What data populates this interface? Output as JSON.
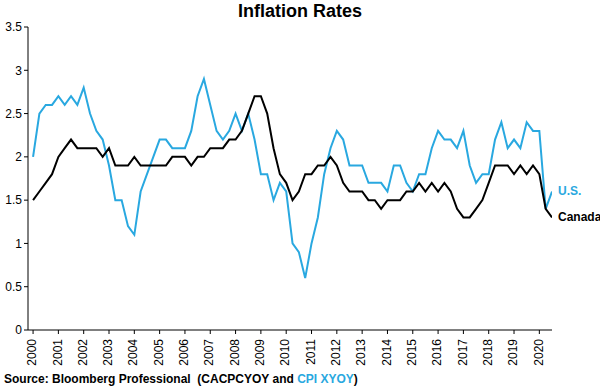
{
  "chart_data": {
    "type": "line",
    "title": "Inflation Rates",
    "source": [
      "Source: Bloomberg Professional  (CACPCYOY and ",
      "CPI XYOY",
      ")"
    ],
    "x": [
      2000,
      2000.25,
      2000.5,
      2000.75,
      2001,
      2001.25,
      2001.5,
      2001.75,
      2002,
      2002.25,
      2002.5,
      2002.75,
      2003,
      2003.25,
      2003.5,
      2003.75,
      2004,
      2004.25,
      2004.5,
      2004.75,
      2005,
      2005.25,
      2005.5,
      2005.75,
      2006,
      2006.25,
      2006.5,
      2006.75,
      2007,
      2007.25,
      2007.5,
      2007.75,
      2008,
      2008.25,
      2008.5,
      2008.75,
      2009,
      2009.25,
      2009.5,
      2009.75,
      2010,
      2010.25,
      2010.5,
      2010.75,
      2011,
      2011.25,
      2011.5,
      2011.75,
      2012,
      2012.25,
      2012.5,
      2012.75,
      2013,
      2013.25,
      2013.5,
      2013.75,
      2014,
      2014.25,
      2014.5,
      2014.75,
      2015,
      2015.25,
      2015.5,
      2015.75,
      2016,
      2016.25,
      2016.5,
      2016.75,
      2017,
      2017.25,
      2017.5,
      2017.75,
      2018,
      2018.25,
      2018.5,
      2018.75,
      2019,
      2019.25,
      2019.5,
      2019.75,
      2020,
      2020.25,
      2020.5
    ],
    "series": [
      {
        "name": "U.S.",
        "color": "#29a8e0",
        "values": [
          2.0,
          2.5,
          2.6,
          2.6,
          2.7,
          2.6,
          2.7,
          2.6,
          2.8,
          2.5,
          2.3,
          2.2,
          1.9,
          1.5,
          1.5,
          1.2,
          1.1,
          1.6,
          1.8,
          2.0,
          2.2,
          2.2,
          2.1,
          2.1,
          2.1,
          2.3,
          2.7,
          2.9,
          2.6,
          2.3,
          2.2,
          2.3,
          2.5,
          2.3,
          2.5,
          2.2,
          1.8,
          1.8,
          1.5,
          1.7,
          1.6,
          1.0,
          0.9,
          0.6,
          1.0,
          1.3,
          1.8,
          2.1,
          2.3,
          2.2,
          1.9,
          1.9,
          1.9,
          1.7,
          1.7,
          1.7,
          1.6,
          1.9,
          1.9,
          1.7,
          1.6,
          1.8,
          1.8,
          2.1,
          2.3,
          2.2,
          2.2,
          2.1,
          2.3,
          1.9,
          1.7,
          1.8,
          1.8,
          2.2,
          2.4,
          2.1,
          2.2,
          2.1,
          2.4,
          2.3,
          2.3,
          1.4,
          1.6
        ]
      },
      {
        "name": "Canada",
        "color": "#000000",
        "values": [
          1.5,
          1.6,
          1.7,
          1.8,
          2.0,
          2.1,
          2.2,
          2.1,
          2.1,
          2.1,
          2.1,
          2.0,
          2.1,
          1.9,
          1.9,
          1.9,
          2.0,
          1.9,
          1.9,
          1.9,
          1.9,
          1.9,
          2.0,
          2.0,
          2.0,
          1.9,
          2.0,
          2.0,
          2.1,
          2.1,
          2.1,
          2.2,
          2.2,
          2.3,
          2.5,
          2.7,
          2.7,
          2.5,
          2.1,
          1.8,
          1.7,
          1.5,
          1.6,
          1.8,
          1.8,
          1.9,
          1.9,
          2.0,
          1.9,
          1.7,
          1.6,
          1.6,
          1.6,
          1.5,
          1.5,
          1.4,
          1.5,
          1.5,
          1.5,
          1.6,
          1.6,
          1.7,
          1.6,
          1.7,
          1.6,
          1.7,
          1.6,
          1.4,
          1.3,
          1.3,
          1.4,
          1.5,
          1.7,
          1.9,
          1.9,
          1.9,
          1.8,
          1.9,
          1.8,
          1.9,
          1.8,
          1.4,
          1.3
        ]
      }
    ],
    "xlim": [
      1999.8,
      2020.5
    ],
    "xticks": [
      2000,
      2001,
      2002,
      2003,
      2004,
      2005,
      2006,
      2007,
      2008,
      2009,
      2010,
      2011,
      2012,
      2013,
      2014,
      2015,
      2016,
      2017,
      2018,
      2019,
      2020
    ],
    "ylim": [
      0,
      3.5
    ],
    "yticks": [
      0,
      0.5,
      1,
      1.5,
      2,
      2.5,
      3,
      3.5
    ],
    "grid": false
  }
}
